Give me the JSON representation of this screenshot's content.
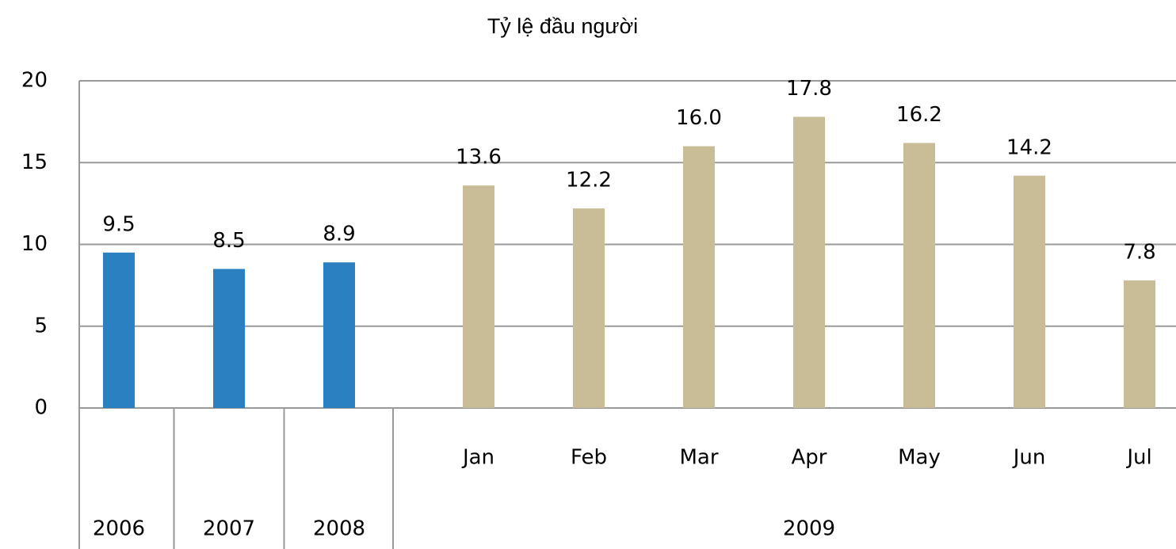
{
  "chart_data": {
    "type": "bar",
    "title": "Tỷ lệ đầu người",
    "categories": [
      null,
      null,
      null,
      "Jan",
      "Feb",
      "Mar",
      "Apr",
      "May",
      "Jun",
      "Jul"
    ],
    "groups": [
      "2006",
      "2007",
      "2008",
      "2009",
      "2009",
      "2009",
      "2009",
      "2009",
      "2009",
      "2009"
    ],
    "values": [
      9.5,
      8.5,
      8.9,
      13.6,
      12.2,
      16.0,
      17.8,
      16.2,
      14.2,
      7.8
    ],
    "value_labels": [
      "9.5",
      "8.5",
      "8.9",
      "13.6",
      "12.2",
      "16.0",
      "17.8",
      "16.2",
      "14.2",
      "7.8"
    ],
    "colors": [
      "#2a80c0",
      "#2a80c0",
      "#2a80c0",
      "#c8bd96",
      "#c8bd96",
      "#c8bd96",
      "#c8bd96",
      "#c8bd96",
      "#c8bd96",
      "#c8bd96"
    ],
    "ylim": [
      0,
      20
    ],
    "yticks": [
      0,
      5,
      10,
      15,
      20
    ],
    "grid": true
  }
}
